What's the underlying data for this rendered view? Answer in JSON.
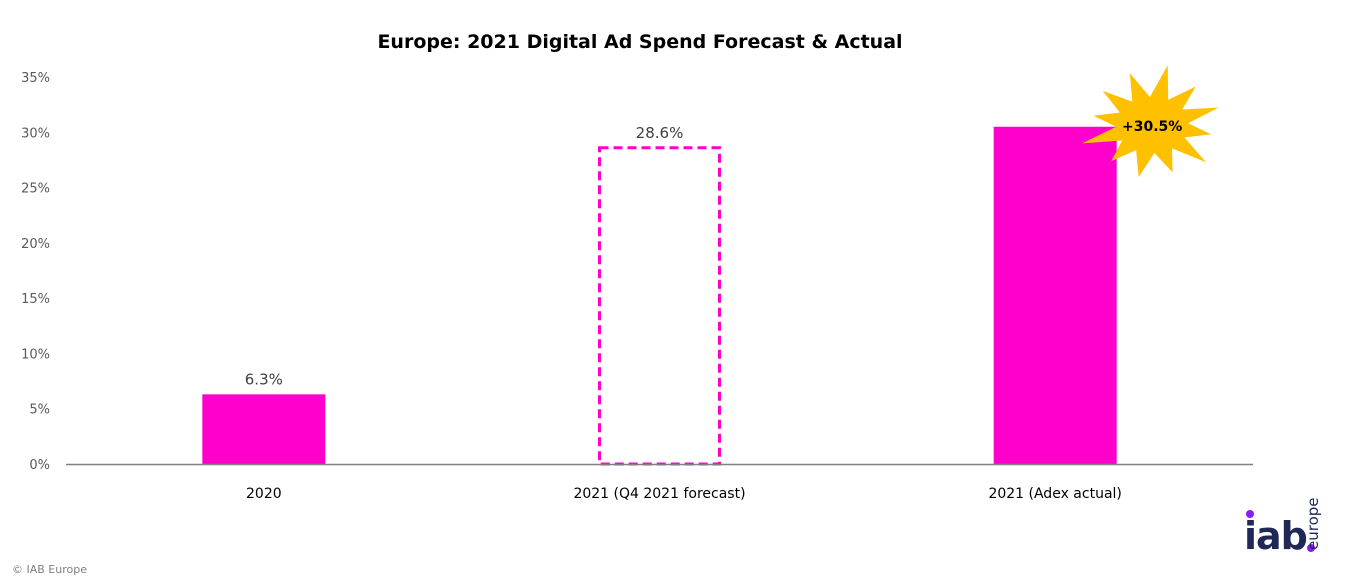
{
  "chart_data": {
    "type": "bar",
    "title": "Europe: 2021 Digital Ad Spend Forecast & Actual",
    "xlabel": "",
    "ylabel": "",
    "ylim": [
      0,
      35
    ],
    "yticks": [
      0,
      5,
      10,
      15,
      20,
      25,
      30,
      35
    ],
    "ytick_labels": [
      "0%",
      "5%",
      "10%",
      "15%",
      "20%",
      "25%",
      "30%",
      "35%"
    ],
    "categories": [
      "2020",
      "2021 (Q4 2021 forecast)",
      "2021 (Adex actual)"
    ],
    "values": [
      6.3,
      28.6,
      30.5
    ],
    "data_labels": [
      "6.3%",
      "28.6%",
      ""
    ],
    "bar_styles": [
      "solid",
      "dashed-outline",
      "solid"
    ],
    "grid": false,
    "legend": "none",
    "annotations": [
      {
        "text": "+30.5%",
        "shape": "starburst",
        "category": "2021 (Adex actual)",
        "color": "#FFC000"
      }
    ],
    "colors": {
      "bar": "#FF00CC",
      "burst": "#FFC000",
      "axis": "#7f7f7f"
    }
  },
  "footer": {
    "copyright": "© IAB Europe"
  },
  "logo": {
    "main": "iab",
    "sub": "europe"
  }
}
